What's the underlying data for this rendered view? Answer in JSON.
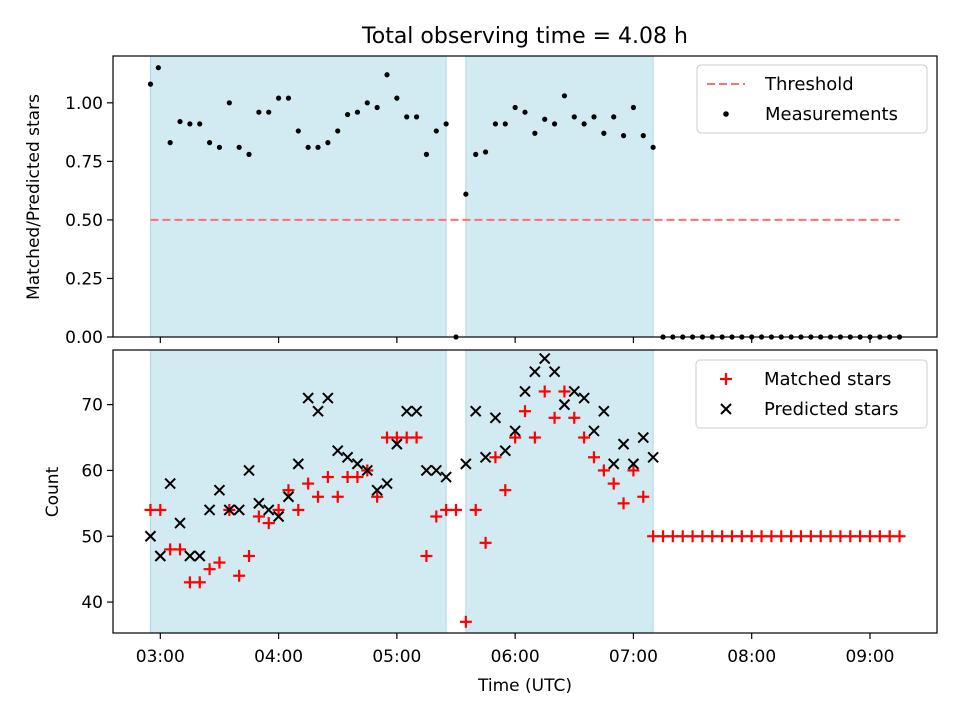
{
  "chart_data": [
    {
      "type": "scatter",
      "title": "Total observing time = 4.08 h",
      "xlabel": "",
      "ylabel": "Matched/Predicted stars",
      "ylim": [
        0,
        1.2
      ],
      "xlim": [
        "02:36",
        "09:34"
      ],
      "yticks": [
        "0.00",
        "0.25",
        "0.50",
        "0.75",
        "1.00"
      ],
      "shaded_intervals": [
        [
          "02:55",
          "05:25"
        ],
        [
          "05:35",
          "07:10"
        ]
      ],
      "shade_color": "#add8e6",
      "legend_position": "upper right",
      "series": [
        {
          "name": "Threshold",
          "style": "dashed line",
          "color": "#ff6f6f",
          "points": [
            [
              "02:55",
              0.5
            ],
            [
              "09:15",
              0.5
            ]
          ]
        },
        {
          "name": "Measurements",
          "style": "dot",
          "color": "#000000",
          "points": [
            [
              "02:55",
              1.08
            ],
            [
              "02:59",
              1.15
            ],
            [
              "03:05",
              0.83
            ],
            [
              "03:10",
              0.92
            ],
            [
              "03:15",
              0.91
            ],
            [
              "03:20",
              0.91
            ],
            [
              "03:25",
              0.83
            ],
            [
              "03:30",
              0.81
            ],
            [
              "03:35",
              1.0
            ],
            [
              "03:40",
              0.81
            ],
            [
              "03:45",
              0.78
            ],
            [
              "03:50",
              0.96
            ],
            [
              "03:55",
              0.96
            ],
            [
              "04:00",
              1.02
            ],
            [
              "04:05",
              1.02
            ],
            [
              "04:10",
              0.88
            ],
            [
              "04:15",
              0.81
            ],
            [
              "04:20",
              0.81
            ],
            [
              "04:25",
              0.83
            ],
            [
              "04:30",
              0.88
            ],
            [
              "04:35",
              0.95
            ],
            [
              "04:40",
              0.96
            ],
            [
              "04:45",
              1.0
            ],
            [
              "04:50",
              0.98
            ],
            [
              "04:55",
              1.12
            ],
            [
              "05:00",
              1.02
            ],
            [
              "05:05",
              0.94
            ],
            [
              "05:10",
              0.94
            ],
            [
              "05:15",
              0.78
            ],
            [
              "05:20",
              0.88
            ],
            [
              "05:25",
              0.91
            ],
            [
              "05:30",
              0.0
            ],
            [
              "05:35",
              0.61
            ],
            [
              "05:40",
              0.78
            ],
            [
              "05:45",
              0.79
            ],
            [
              "05:50",
              0.91
            ],
            [
              "05:55",
              0.91
            ],
            [
              "06:00",
              0.98
            ],
            [
              "06:05",
              0.96
            ],
            [
              "06:10",
              0.87
            ],
            [
              "06:15",
              0.93
            ],
            [
              "06:20",
              0.91
            ],
            [
              "06:25",
              1.03
            ],
            [
              "06:30",
              0.94
            ],
            [
              "06:35",
              0.91
            ],
            [
              "06:40",
              0.94
            ],
            [
              "06:45",
              0.87
            ],
            [
              "06:50",
              0.94
            ],
            [
              "06:55",
              0.86
            ],
            [
              "07:00",
              0.98
            ],
            [
              "07:05",
              0.86
            ],
            [
              "07:10",
              0.81
            ],
            [
              "07:15",
              0.0
            ],
            [
              "07:20",
              0.0
            ],
            [
              "07:25",
              0.0
            ],
            [
              "07:30",
              0.0
            ],
            [
              "07:35",
              0.0
            ],
            [
              "07:40",
              0.0
            ],
            [
              "07:45",
              0.0
            ],
            [
              "07:50",
              0.0
            ],
            [
              "07:55",
              0.0
            ],
            [
              "08:00",
              0.0
            ],
            [
              "08:05",
              0.0
            ],
            [
              "08:10",
              0.0
            ],
            [
              "08:15",
              0.0
            ],
            [
              "08:20",
              0.0
            ],
            [
              "08:25",
              0.0
            ],
            [
              "08:30",
              0.0
            ],
            [
              "08:35",
              0.0
            ],
            [
              "08:40",
              0.0
            ],
            [
              "08:45",
              0.0
            ],
            [
              "08:50",
              0.0
            ],
            [
              "08:55",
              0.0
            ],
            [
              "09:00",
              0.0
            ],
            [
              "09:05",
              0.0
            ],
            [
              "09:10",
              0.0
            ],
            [
              "09:15",
              0.0
            ]
          ]
        }
      ]
    },
    {
      "type": "scatter",
      "title": "",
      "xlabel": "Time (UTC)",
      "ylabel": "Count",
      "ylim": [
        35.3,
        78.3
      ],
      "xlim": [
        "02:36",
        "09:34"
      ],
      "yticks": [
        "40",
        "50",
        "60",
        "70"
      ],
      "xticks": [
        "03:00",
        "04:00",
        "05:00",
        "06:00",
        "07:00",
        "08:00",
        "09:00"
      ],
      "shaded_intervals": [
        [
          "02:55",
          "05:25"
        ],
        [
          "05:35",
          "07:10"
        ]
      ],
      "shade_color": "#add8e6",
      "legend_position": "upper right",
      "series": [
        {
          "name": "Matched stars",
          "style": "plus",
          "color": "#ff0000",
          "points": [
            [
              "02:55",
              54
            ],
            [
              "03:00",
              54
            ],
            [
              "03:05",
              48
            ],
            [
              "03:10",
              48
            ],
            [
              "03:15",
              43
            ],
            [
              "03:20",
              43
            ],
            [
              "03:25",
              45
            ],
            [
              "03:30",
              46
            ],
            [
              "03:35",
              54
            ],
            [
              "03:40",
              44
            ],
            [
              "03:45",
              47
            ],
            [
              "03:50",
              53
            ],
            [
              "03:55",
              52
            ],
            [
              "04:00",
              54
            ],
            [
              "04:05",
              57
            ],
            [
              "04:10",
              54
            ],
            [
              "04:15",
              58
            ],
            [
              "04:20",
              56
            ],
            [
              "04:25",
              59
            ],
            [
              "04:30",
              56
            ],
            [
              "04:35",
              59
            ],
            [
              "04:40",
              59
            ],
            [
              "04:45",
              60
            ],
            [
              "04:50",
              56
            ],
            [
              "04:55",
              65
            ],
            [
              "05:00",
              65
            ],
            [
              "05:05",
              65
            ],
            [
              "05:10",
              65
            ],
            [
              "05:15",
              47
            ],
            [
              "05:20",
              53
            ],
            [
              "05:25",
              54
            ],
            [
              "05:30",
              54
            ],
            [
              "05:35",
              37
            ],
            [
              "05:40",
              54
            ],
            [
              "05:45",
              49
            ],
            [
              "05:50",
              62
            ],
            [
              "05:55",
              57
            ],
            [
              "06:00",
              65
            ],
            [
              "06:05",
              69
            ],
            [
              "06:10",
              65
            ],
            [
              "06:15",
              72
            ],
            [
              "06:20",
              68
            ],
            [
              "06:25",
              72
            ],
            [
              "06:30",
              68
            ],
            [
              "06:35",
              65
            ],
            [
              "06:40",
              62
            ],
            [
              "06:45",
              60
            ],
            [
              "06:50",
              58
            ],
            [
              "06:55",
              55
            ],
            [
              "07:00",
              60
            ],
            [
              "07:05",
              56
            ],
            [
              "07:10",
              50
            ],
            [
              "07:15",
              50
            ],
            [
              "07:20",
              50
            ],
            [
              "07:25",
              50
            ],
            [
              "07:30",
              50
            ],
            [
              "07:35",
              50
            ],
            [
              "07:40",
              50
            ],
            [
              "07:45",
              50
            ],
            [
              "07:50",
              50
            ],
            [
              "07:55",
              50
            ],
            [
              "08:00",
              50
            ],
            [
              "08:05",
              50
            ],
            [
              "08:10",
              50
            ],
            [
              "08:15",
              50
            ],
            [
              "08:20",
              50
            ],
            [
              "08:25",
              50
            ],
            [
              "08:30",
              50
            ],
            [
              "08:35",
              50
            ],
            [
              "08:40",
              50
            ],
            [
              "08:45",
              50
            ],
            [
              "08:50",
              50
            ],
            [
              "08:55",
              50
            ],
            [
              "09:00",
              50
            ],
            [
              "09:05",
              50
            ],
            [
              "09:10",
              50
            ],
            [
              "09:15",
              50
            ]
          ]
        },
        {
          "name": "Predicted stars",
          "style": "x",
          "color": "#000000",
          "points": [
            [
              "02:55",
              50
            ],
            [
              "03:00",
              47
            ],
            [
              "03:05",
              58
            ],
            [
              "03:10",
              52
            ],
            [
              "03:15",
              47
            ],
            [
              "03:20",
              47
            ],
            [
              "03:25",
              54
            ],
            [
              "03:30",
              57
            ],
            [
              "03:35",
              54
            ],
            [
              "03:40",
              54
            ],
            [
              "03:45",
              60
            ],
            [
              "03:50",
              55
            ],
            [
              "03:55",
              54
            ],
            [
              "04:00",
              53
            ],
            [
              "04:05",
              56
            ],
            [
              "04:10",
              61
            ],
            [
              "04:15",
              71
            ],
            [
              "04:20",
              69
            ],
            [
              "04:25",
              71
            ],
            [
              "04:30",
              63
            ],
            [
              "04:35",
              62
            ],
            [
              "04:40",
              61
            ],
            [
              "04:45",
              60
            ],
            [
              "04:50",
              57
            ],
            [
              "04:55",
              58
            ],
            [
              "05:00",
              64
            ],
            [
              "05:05",
              69
            ],
            [
              "05:10",
              69
            ],
            [
              "05:15",
              60
            ],
            [
              "05:20",
              60
            ],
            [
              "05:25",
              59
            ],
            [
              "05:35",
              61
            ],
            [
              "05:40",
              69
            ],
            [
              "05:45",
              62
            ],
            [
              "05:50",
              68
            ],
            [
              "05:55",
              63
            ],
            [
              "06:00",
              66
            ],
            [
              "06:05",
              72
            ],
            [
              "06:10",
              75
            ],
            [
              "06:15",
              77
            ],
            [
              "06:20",
              75
            ],
            [
              "06:25",
              70
            ],
            [
              "06:30",
              72
            ],
            [
              "06:35",
              71
            ],
            [
              "06:40",
              66
            ],
            [
              "06:45",
              69
            ],
            [
              "06:50",
              61
            ],
            [
              "06:55",
              64
            ],
            [
              "07:00",
              61
            ],
            [
              "07:05",
              65
            ],
            [
              "07:10",
              62
            ]
          ]
        }
      ]
    }
  ]
}
